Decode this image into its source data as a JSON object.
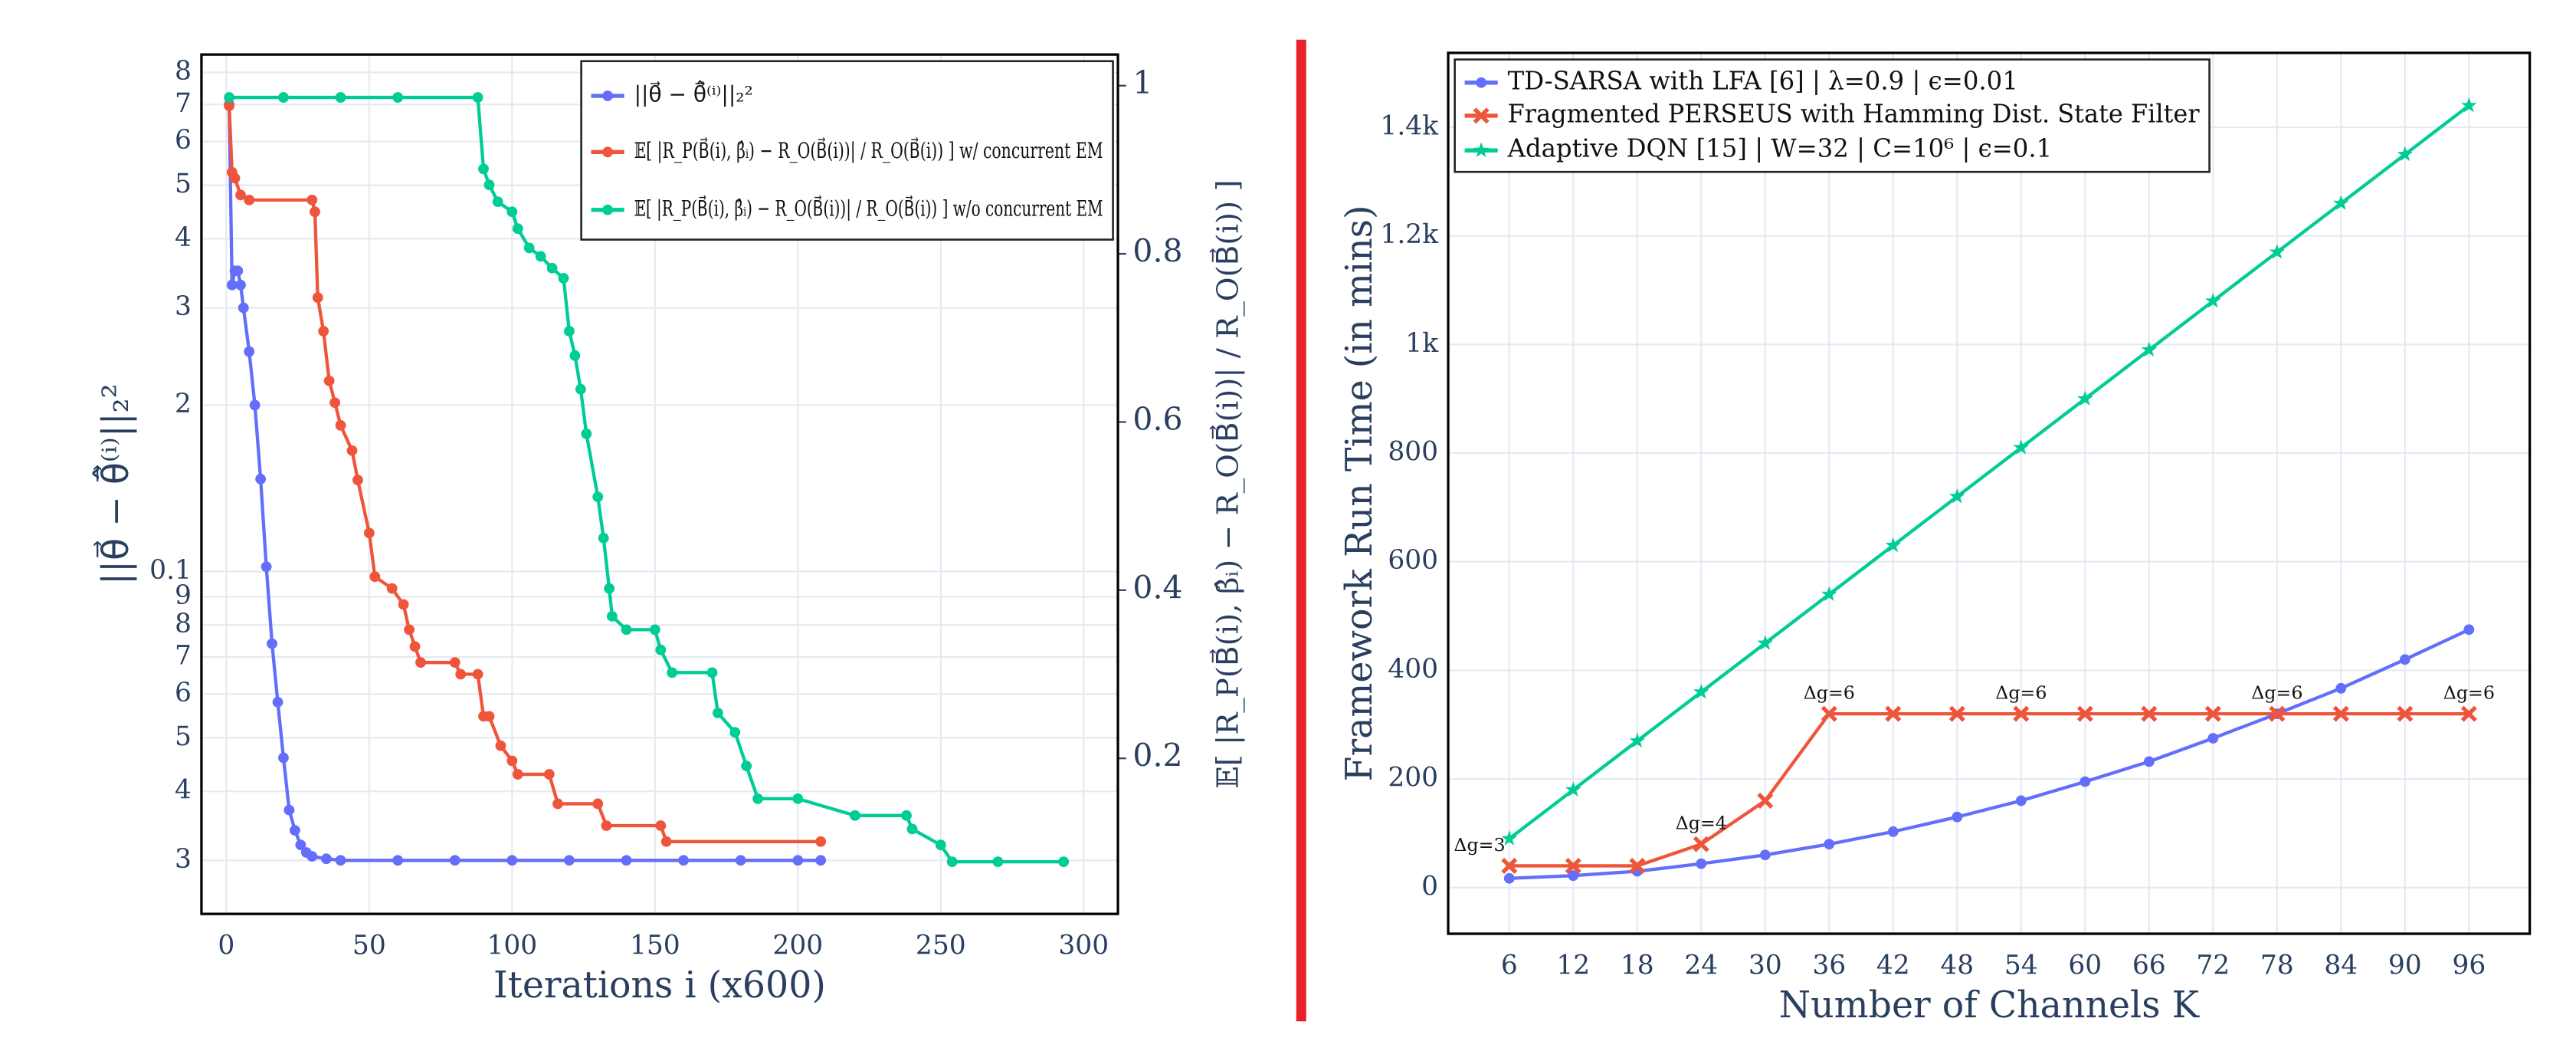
{
  "chart_data": [
    {
      "type": "line",
      "log_y": true,
      "grid": true,
      "legend": "top-right",
      "xlabel": "Iterations i (x600)",
      "ylabel": "||θ⃗ − θ̂⃗⁽ⁱ⁾||₂²",
      "y2label": "𝔼[ |R_P(B⃗(i), β̂ᵢ) − R_O(B⃗(i))| / R_O(B⃗(i)) ]",
      "xlim": [
        -8.7,
        312
      ],
      "xticks": [
        0,
        50,
        100,
        150,
        200,
        250,
        300
      ],
      "ylim": [
        0.024,
        0.862
      ],
      "yticks": [
        {
          "value": 0.03,
          "label": "3"
        },
        {
          "value": 0.04,
          "label": "4"
        },
        {
          "value": 0.05,
          "label": "5"
        },
        {
          "value": 0.06,
          "label": "6"
        },
        {
          "value": 0.07,
          "label": "7"
        },
        {
          "value": 0.08,
          "label": "8"
        },
        {
          "value": 0.09,
          "label": "9"
        },
        0.1,
        {
          "value": 0.2,
          "label": "2"
        },
        {
          "value": 0.3,
          "label": "3"
        },
        {
          "value": 0.4,
          "label": "4"
        },
        {
          "value": 0.5,
          "label": "5"
        },
        {
          "value": 0.6,
          "label": "6"
        },
        {
          "value": 0.7,
          "label": "7"
        },
        {
          "value": 0.8,
          "label": "8"
        }
      ],
      "y2lim": [
        0.015,
        1.037
      ],
      "y2ticks": [
        0.2,
        0.4,
        0.6,
        0.8,
        1
      ],
      "series": [
        {
          "name": "||θ⃗ − θ̂⃗⁽ⁱ⁾||₂²",
          "color": "#636efa",
          "marker": "circle",
          "x": [
            1,
            2,
            3,
            4,
            5,
            6,
            8,
            10,
            12,
            14,
            16,
            18,
            20,
            22,
            24,
            26,
            28,
            30,
            35,
            40,
            60,
            80,
            100,
            120,
            140,
            160,
            180,
            200,
            208
          ],
          "values": [
            0.7,
            0.33,
            0.35,
            0.35,
            0.33,
            0.3,
            0.25,
            0.2,
            0.147,
            0.102,
            0.074,
            0.058,
            0.046,
            0.037,
            0.034,
            0.032,
            0.031,
            0.0305,
            0.0302,
            0.03,
            0.03,
            0.03,
            0.03,
            0.03,
            0.03,
            0.03,
            0.03,
            0.03,
            0.03
          ]
        },
        {
          "name": "𝔼[ |R_P(B⃗(i), β̂ᵢ) − R_O(B⃗(i))| / R_O(B⃗(i)) ] w/ concurrent EM",
          "color": "#ef553b",
          "marker": "circle",
          "axis": "y2",
          "x": [
            1,
            2,
            3,
            5,
            8,
            30,
            31,
            32,
            34,
            36,
            38,
            40,
            44,
            46,
            50,
            52,
            58,
            62,
            64,
            66,
            68,
            80,
            82,
            88,
            90,
            92,
            96,
            100,
            102,
            113,
            116,
            130,
            133,
            152,
            154,
            208
          ],
          "values": [
            0.976,
            0.897,
            0.89,
            0.87,
            0.864,
            0.864,
            0.85,
            0.748,
            0.708,
            0.649,
            0.623,
            0.596,
            0.566,
            0.531,
            0.468,
            0.416,
            0.402,
            0.383,
            0.353,
            0.333,
            0.314,
            0.314,
            0.3,
            0.3,
            0.25,
            0.25,
            0.215,
            0.197,
            0.181,
            0.181,
            0.146,
            0.146,
            0.12,
            0.12,
            0.101,
            0.101
          ]
        },
        {
          "name": "𝔼[ |R_P(B⃗(i), β̂ᵢ) − R_O(B⃗(i))| / R_O(B⃗(i)) ] w/o concurrent EM",
          "color": "#00cc96",
          "marker": "circle",
          "axis": "y2",
          "x": [
            1,
            20,
            40,
            60,
            88,
            90,
            92,
            95,
            100,
            102,
            106,
            110,
            114,
            118,
            120,
            122,
            124,
            126,
            130,
            132,
            134,
            135,
            140,
            150,
            152,
            156,
            170,
            172,
            178,
            182,
            186,
            200,
            220,
            238,
            240,
            250,
            254,
            270,
            293
          ],
          "values": [
            0.986,
            0.986,
            0.986,
            0.986,
            0.986,
            0.901,
            0.882,
            0.862,
            0.85,
            0.83,
            0.807,
            0.797,
            0.783,
            0.771,
            0.708,
            0.679,
            0.639,
            0.586,
            0.511,
            0.462,
            0.402,
            0.369,
            0.353,
            0.353,
            0.329,
            0.302,
            0.302,
            0.254,
            0.231,
            0.191,
            0.152,
            0.152,
            0.132,
            0.132,
            0.116,
            0.097,
            0.077,
            0.077,
            0.077
          ]
        }
      ]
    },
    {
      "type": "line",
      "grid": true,
      "legend": "top-left",
      "xlabel": "Number of Channels K",
      "ylabel": "Framework Run Time (in mins)",
      "x": [
        6,
        12,
        18,
        24,
        30,
        36,
        42,
        48,
        54,
        60,
        66,
        72,
        78,
        84,
        90,
        96
      ],
      "xlim": [
        0.27,
        101.7
      ],
      "xticks": [
        6,
        12,
        18,
        24,
        30,
        36,
        42,
        48,
        54,
        60,
        66,
        72,
        78,
        84,
        90,
        96
      ],
      "ylim": [
        -85,
        1537
      ],
      "yticks": [
        0,
        200,
        400,
        600,
        800,
        {
          "value": 1000,
          "label": "1k"
        },
        {
          "value": 1200,
          "label": "1.2k"
        },
        {
          "value": 1400,
          "label": "1.4k"
        }
      ],
      "series": [
        {
          "name": "TD-SARSA with LFA [6] | λ=0.9 | ϵ=0.01",
          "color": "#636efa",
          "marker": "circle",
          "values": [
            17,
            22,
            30,
            44,
            60,
            80,
            103,
            130,
            160,
            195,
            232,
            275,
            320,
            367,
            420,
            475
          ]
        },
        {
          "name": "Fragmented PERSEUS with Hamming Dist. State Filter",
          "color": "#ef553b",
          "marker": "x",
          "values": [
            40,
            40,
            40,
            80,
            160,
            320,
            320,
            320,
            320,
            320,
            320,
            320,
            320,
            320,
            320,
            320
          ]
        },
        {
          "name": "Adaptive DQN [15] | W=32 | C=10⁶ | ϵ=0.1",
          "color": "#00cc96",
          "marker": "star",
          "values": [
            90,
            180,
            270,
            360,
            450,
            540,
            630,
            720,
            810,
            900,
            990,
            1080,
            1170,
            1260,
            1350,
            1440
          ]
        }
      ],
      "annotations": [
        {
          "text": "Δg=3",
          "x": 6
        },
        {
          "text": "Δg=4",
          "x": 24
        },
        {
          "text": "Δg=6",
          "x": 36
        },
        {
          "text": "Δg=6",
          "x": 54
        },
        {
          "text": "Δg=6",
          "x": 78
        },
        {
          "text": "Δg=6",
          "x": 96
        }
      ]
    }
  ]
}
